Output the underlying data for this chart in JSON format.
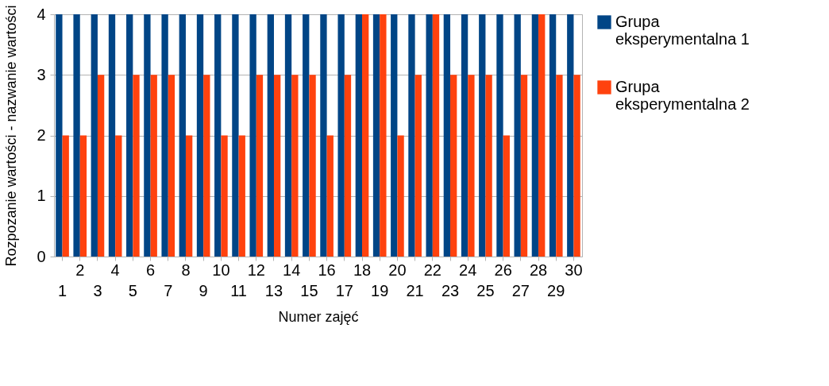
{
  "chart_data": {
    "type": "bar",
    "xlabel": "Numer zajęć",
    "ylabel": "Rozpozanie wartości - nazwanie wartości",
    "categories": [
      "1",
      "2",
      "3",
      "4",
      "5",
      "6",
      "7",
      "8",
      "9",
      "10",
      "11",
      "12",
      "13",
      "14",
      "15",
      "16",
      "17",
      "18",
      "19",
      "20",
      "21",
      "22",
      "23",
      "24",
      "25",
      "26",
      "27",
      "28",
      "29",
      "30"
    ],
    "series": [
      {
        "name": "Grupa eksperymentalna 1",
        "color": "#004586",
        "values": [
          4,
          4,
          4,
          4,
          4,
          4,
          4,
          4,
          4,
          4,
          4,
          4,
          4,
          4,
          4,
          4,
          4,
          4,
          4,
          4,
          4,
          4,
          4,
          4,
          4,
          4,
          4,
          4,
          4,
          4
        ]
      },
      {
        "name": "Grupa eksperymentalna 2",
        "color": "#ff420e",
        "values": [
          2,
          2,
          3,
          2,
          3,
          3,
          3,
          2,
          3,
          2,
          2,
          3,
          3,
          3,
          3,
          2,
          3,
          4,
          4,
          2,
          3,
          4,
          3,
          3,
          3,
          2,
          3,
          4,
          3,
          3
        ]
      }
    ],
    "ylim": [
      0,
      4
    ],
    "yticks": [
      0,
      1,
      2,
      3,
      4
    ],
    "grid": "y",
    "legend": "right"
  }
}
